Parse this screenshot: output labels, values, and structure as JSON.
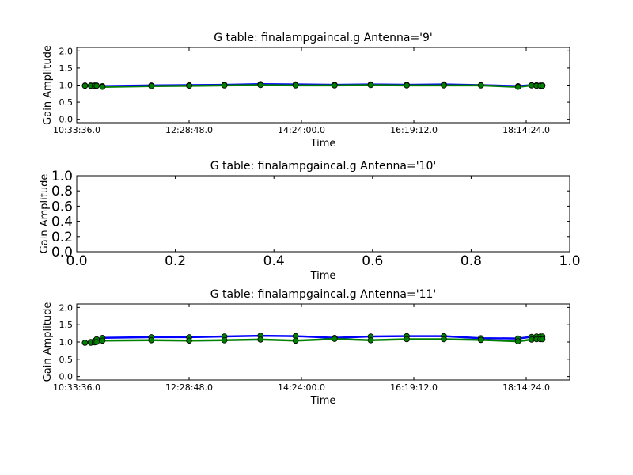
{
  "chart_data": [
    {
      "type": "line",
      "title": "G table: finalampgaincal.g      Antenna='9'",
      "xlabel": "Time",
      "ylabel": "Gain Amplitude",
      "xlim": [
        "10:33:36.0",
        "18:59:00.0"
      ],
      "ylim": [
        -0.1,
        2.1
      ],
      "xticks": [
        "10:33:36.0",
        "12:28:48.0",
        "14:24:00.0",
        "16:19:12.0",
        "18:14:24.0"
      ],
      "yticks": [
        "0.0",
        "0.5",
        "1.0",
        "1.5",
        "2.0"
      ],
      "x": [
        "10:42:00",
        "10:48:00",
        "10:52:00",
        "10:54:00",
        "11:00:00",
        "11:50:00",
        "12:28:48",
        "13:05:00",
        "13:42:00",
        "14:18:00",
        "14:58:00",
        "15:35:00",
        "16:12:00",
        "16:50:00",
        "17:28:00",
        "18:06:00",
        "18:20:00",
        "18:25:00",
        "18:29:00",
        "18:31:00"
      ],
      "series": [
        {
          "color": "#0000ff",
          "values": [
            0.99,
            0.99,
            0.99,
            0.99,
            0.97,
            0.99,
            1.0,
            1.01,
            1.03,
            1.02,
            1.01,
            1.02,
            1.01,
            1.02,
            1.0,
            0.97,
            1.0,
            1.0,
            0.99,
            0.99
          ]
        },
        {
          "color": "#008000",
          "values": [
            0.98,
            0.98,
            0.98,
            0.98,
            0.95,
            0.97,
            0.98,
            0.99,
            1.0,
            0.99,
            0.99,
            1.0,
            0.99,
            0.99,
            0.99,
            0.95,
            0.99,
            0.98,
            0.98,
            0.98
          ]
        }
      ]
    },
    {
      "type": "line",
      "title": "G table: finalampgaincal.g      Antenna='10'",
      "xlabel": "Time",
      "ylabel": "Gain Amplitude",
      "xlim": [
        0.0,
        1.0
      ],
      "ylim": [
        0.0,
        1.0
      ],
      "xticks": [
        "0.0",
        "0.2",
        "0.4",
        "0.6",
        "0.8",
        "1.0"
      ],
      "yticks": [
        "0.0",
        "0.2",
        "0.4",
        "0.6",
        "0.8",
        "1.0"
      ],
      "series": []
    },
    {
      "type": "line",
      "title": "G table: finalampgaincal.g      Antenna='11'",
      "xlabel": "Time",
      "ylabel": "Gain Amplitude",
      "xlim": [
        "10:33:36.0",
        "18:59:00.0"
      ],
      "ylim": [
        -0.1,
        2.1
      ],
      "xticks": [
        "10:33:36.0",
        "12:28:48.0",
        "14:24:00.0",
        "16:19:12.0",
        "18:14:24.0"
      ],
      "yticks": [
        "0.0",
        "0.5",
        "1.0",
        "1.5",
        "2.0"
      ],
      "x": [
        "10:42:00",
        "10:48:00",
        "10:52:00",
        "10:54:00",
        "11:00:00",
        "11:50:00",
        "12:28:48",
        "13:05:00",
        "13:42:00",
        "14:18:00",
        "14:58:00",
        "15:35:00",
        "16:12:00",
        "16:50:00",
        "17:28:00",
        "18:06:00",
        "18:20:00",
        "18:25:00",
        "18:29:00",
        "18:31:00"
      ],
      "series": [
        {
          "color": "#0000ff",
          "values": [
            0.98,
            1.0,
            1.03,
            1.08,
            1.12,
            1.14,
            1.14,
            1.16,
            1.18,
            1.17,
            1.12,
            1.16,
            1.17,
            1.17,
            1.11,
            1.1,
            1.15,
            1.16,
            1.16,
            1.16
          ]
        },
        {
          "color": "#008000",
          "values": [
            0.98,
            0.98,
            0.99,
            1.0,
            1.04,
            1.05,
            1.04,
            1.05,
            1.07,
            1.04,
            1.09,
            1.05,
            1.08,
            1.08,
            1.06,
            1.02,
            1.07,
            1.08,
            1.08,
            1.08
          ]
        }
      ]
    }
  ]
}
